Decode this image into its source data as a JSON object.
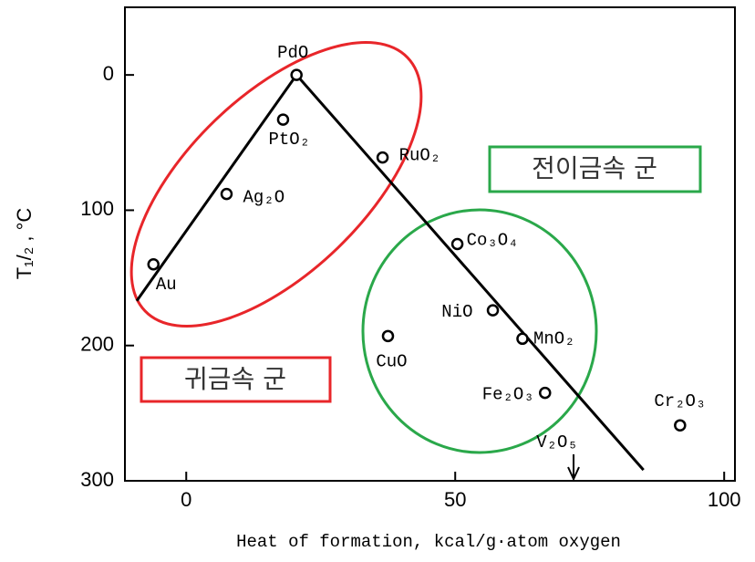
{
  "chart_data": {
    "type": "scatter",
    "xlabel": "Heat of formation,  kcal/g·atom oxygen",
    "ylabel": "T₁/₂ ,  °C",
    "xlim": [
      -11.4,
      102
    ],
    "ylim": [
      300,
      -50
    ],
    "xticks": [
      0,
      50,
      100
    ],
    "yticks": [
      0,
      100,
      200,
      300
    ],
    "points": {
      "labels": [
        "Au",
        "Ag₂O",
        "PtO₂",
        "PdO",
        "RuO₂",
        "Co₃O₄",
        "NiO",
        "MnO₂",
        "CuO",
        "Fe₂O₃",
        "Cr₂O₃"
      ],
      "x": [
        -6.1,
        7.5,
        18,
        20.5,
        36.5,
        50.4,
        57,
        62.5,
        37.5,
        66.7,
        91.8
      ],
      "y": [
        140,
        88,
        33,
        0,
        61,
        125,
        174,
        195,
        193,
        235,
        259
      ],
      "color": "#000000"
    },
    "line": {
      "x": [
        -9.2,
        20.5,
        85
      ],
      "y": [
        167,
        0,
        292
      ],
      "color": "#000000"
    },
    "arrow_annotation": {
      "label": "V₂O₅",
      "x": 72
    },
    "group_labels": [
      "귀금속 군",
      "전이금속 군"
    ]
  }
}
